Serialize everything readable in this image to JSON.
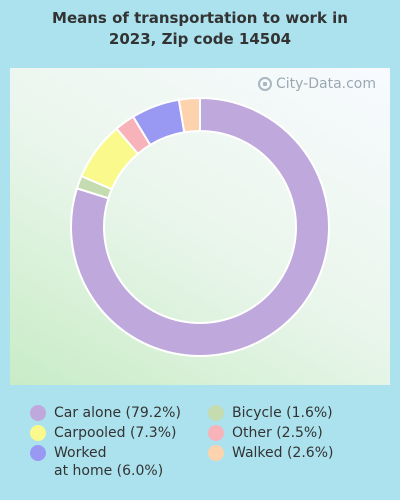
{
  "chart_data": {
    "type": "pie",
    "title": "Means of transportation to work in\n2023, Zip code 14504",
    "slices": [
      {
        "label": "Car alone (79.2%)",
        "value": 79.2,
        "color": "#bfa8dc"
      },
      {
        "label": "Bicycle (1.6%)",
        "value": 1.6,
        "color": "#c5dcb0"
      },
      {
        "label": "Carpooled (7.3%)",
        "value": 7.3,
        "color": "#fafa8c"
      },
      {
        "label": "Other (2.5%)",
        "value": 2.5,
        "color": "#f7b3b9"
      },
      {
        "label": "Worked\nat home (6.0%)",
        "value": 6.0,
        "color": "#9999f4"
      },
      {
        "label": "Walked (2.6%)",
        "value": 2.6,
        "color": "#fdd3ae"
      }
    ],
    "legend_placement": "bottom"
  },
  "watermark": "City-Data.com"
}
